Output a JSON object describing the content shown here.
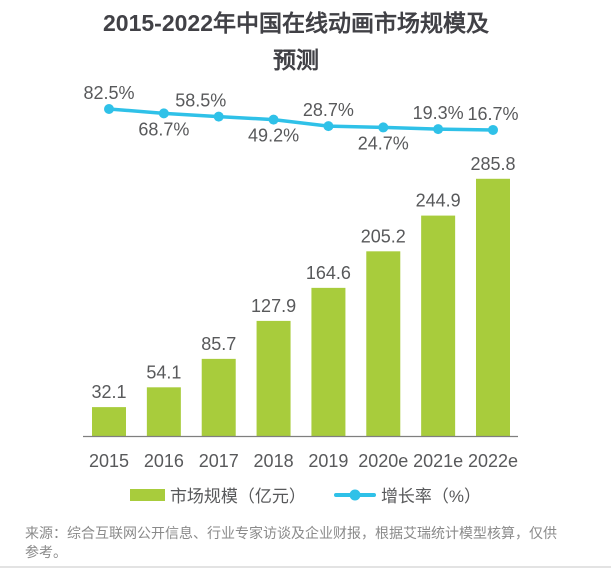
{
  "title": {
    "line1": "2015-2022年中国在线动画市场规模及",
    "line2": "预测"
  },
  "legend": {
    "bar_label": "市场规模（亿元）",
    "line_label": "增长率（%）"
  },
  "source": {
    "line1": "来源：综合互联网公开信息、行业专家访谈及企业财报，根据艾瑞统计模型核算，仅供",
    "line2": "参考。"
  },
  "colors": {
    "bar": "#a8cc3c",
    "line": "#2fc1e8",
    "title_text": "#414146",
    "label_text": "#58595b",
    "source_text": "#8a8a8a",
    "axis": "#7f7f7f"
  },
  "chart_data": {
    "type": "bar",
    "title": "2015-2022年中国在线动画市场规模及预测",
    "categories": [
      "2015",
      "2016",
      "2017",
      "2018",
      "2019",
      "2020e",
      "2021e",
      "2022e"
    ],
    "series": [
      {
        "name": "市场规模（亿元）",
        "type": "bar",
        "axis": "left",
        "unit": "亿元",
        "color": "#a8cc3c",
        "values": [
          32.1,
          54.1,
          85.7,
          127.9,
          164.6,
          205.2,
          244.9,
          285.8
        ]
      },
      {
        "name": "增长率（%）",
        "type": "line",
        "axis": "right",
        "unit": "%",
        "color": "#2fc1e8",
        "values": [
          82.5,
          68.7,
          58.5,
          49.2,
          28.7,
          24.7,
          19.3,
          16.7
        ],
        "label_positions": [
          "above",
          "below",
          "above",
          "below",
          "above",
          "below",
          "above",
          "above"
        ],
        "label_dx": [
          0,
          0,
          -18,
          0,
          0,
          0,
          0,
          0
        ]
      }
    ],
    "data_labels": true,
    "grid": false,
    "legend_position": "bottom",
    "xlabel": "",
    "ylabel": ""
  }
}
